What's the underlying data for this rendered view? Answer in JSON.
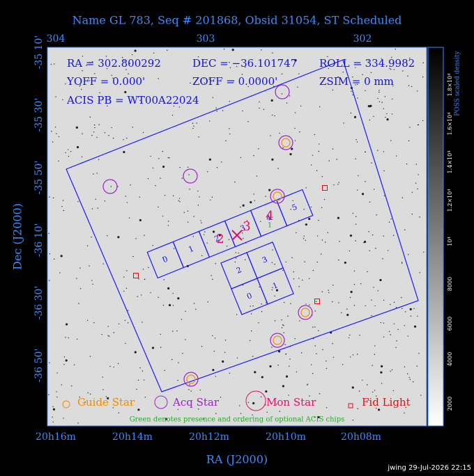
{
  "header": {
    "title": "Name GL 783, Seq # 201868, Obsid 31054, ST Scheduled"
  },
  "axes": {
    "top_labels": [
      "304",
      "303",
      "302"
    ],
    "left_labels": [
      "-35 10'",
      "-35 30'",
      "-35 50'",
      "-36 10'",
      "-36 30'",
      "-36 50'"
    ],
    "bottom_labels": [
      "20h16m",
      "20h14m",
      "20h12m",
      "20h10m",
      "20h08m"
    ],
    "x_title": "RA (J2000)",
    "y_title": "Dec (J2000)"
  },
  "info": [
    "RA = 302.800292",
    "DEC = −36.101747",
    "ROLL = 334.9982",
    "YOFF =   0.000'",
    "ZOFF =  0.0000'",
    "ZSIM = 0 mm",
    "ACIS PB = WT00A22024"
  ],
  "acis_s": [
    "0",
    "1",
    "2",
    "3",
    "4",
    "5"
  ],
  "acis_i": [
    "2",
    "3",
    "0",
    "1"
  ],
  "markers": {
    "mon_labels": [
      "2",
      "3",
      "4"
    ],
    "optional_chip": "1"
  },
  "legend": {
    "items": [
      "Guide Star",
      "Acq Star",
      "Mon Star",
      "Fid Light"
    ],
    "note": "Green denotes presence and ordering of optional ACIS chips"
  },
  "colorbar": {
    "title": "POSS scaled density",
    "ticks": [
      "2000",
      "4000",
      "6000",
      "8000",
      "10⁴",
      "1.2×10⁴",
      "1.4×10⁴",
      "1.6×10⁴",
      "1.8×10⁴"
    ]
  },
  "footer": "jwing 29-Jul-2026 22:15"
}
